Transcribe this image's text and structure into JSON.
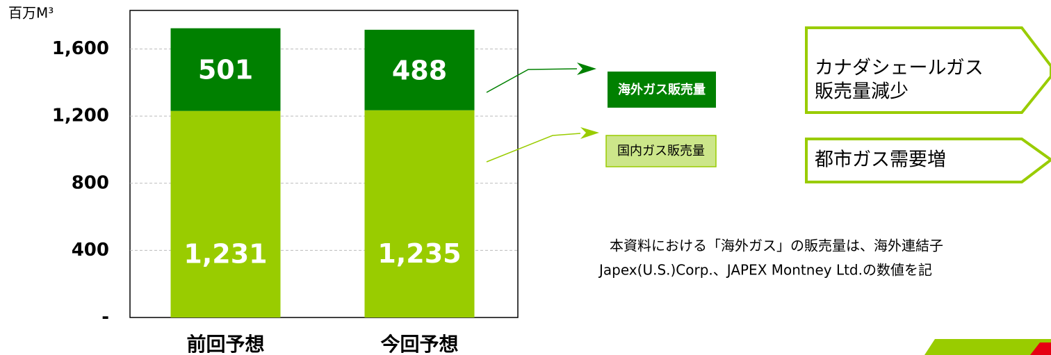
{
  "chart_data": {
    "type": "stacked_bar",
    "unit_label": "百万M³",
    "categories": [
      "前回予想",
      "今回予想"
    ],
    "series": [
      {
        "name": "国内ガス販売量",
        "color": "#99cc00",
        "values": [
          1231,
          1235
        ],
        "value_labels": [
          "1,231",
          "1,235"
        ]
      },
      {
        "name": "海外ガス販売量",
        "color": "#008000",
        "values": [
          501,
          488
        ]
      }
    ],
    "ylim": [
      0,
      1830
    ],
    "yticks": [
      {
        "value": 0,
        "label": "-"
      },
      400,
      800,
      {
        "value": 1200,
        "label": "1,200"
      },
      {
        "value": 1600,
        "label": "1,600"
      }
    ],
    "grid": true,
    "annotations": [
      "カナダシェールガス",
      "販売量減少",
      "都市ガス需要増"
    ],
    "footnote": [
      "本資料における「海外ガス」の販売量は、海外連結子",
      "Japex(U.S.)Corp.、JAPEX Montney Ltd.の数値を記"
    ]
  }
}
